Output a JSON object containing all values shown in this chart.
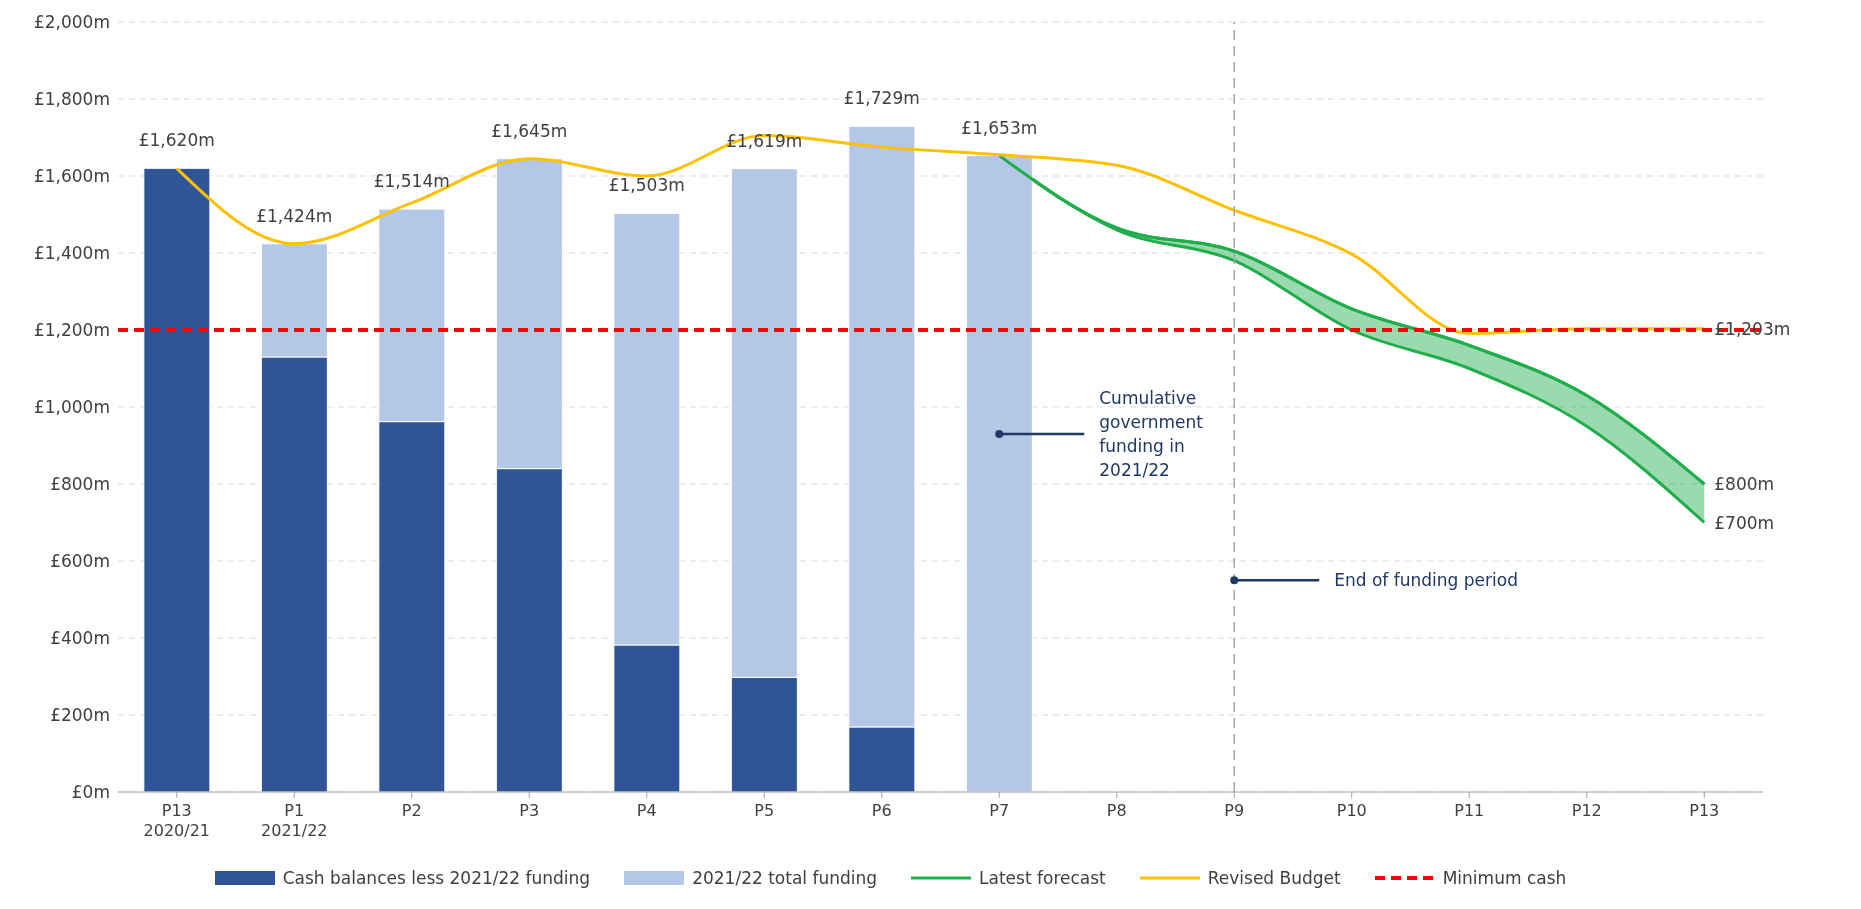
{
  "chart_data": {
    "type": "bar",
    "stacked": true,
    "categories": [
      "P13\n2020/21",
      "P1\n2021/22",
      "P2",
      "P3",
      "P4",
      "P5",
      "P6",
      "P7",
      "P8",
      "P9",
      "P10",
      "P11",
      "P12",
      "P13"
    ],
    "series": [
      {
        "name": "Cash balances less 2021/22 funding",
        "color": "#2f5597",
        "values": [
          1620,
          1130,
          962,
          840,
          382,
          298,
          169,
          0,
          null,
          null,
          null,
          null,
          null,
          null
        ]
      },
      {
        "name": "2021/22 total funding",
        "color": "#b4c7e7",
        "values": [
          0,
          294,
          552,
          805,
          1121,
          1321,
          1560,
          1653,
          null,
          null,
          null,
          null,
          null,
          null
        ]
      },
      {
        "name": "Latest forecast",
        "type": "line",
        "color": "#1fae4b",
        "values": [
          null,
          null,
          null,
          null,
          null,
          null,
          null,
          1653,
          1465,
          1405,
          1255,
          1160,
          1030,
          800
        ],
        "lower": [
          null,
          null,
          null,
          null,
          null,
          null,
          null,
          1653,
          1460,
          1380,
          1200,
          1100,
          950,
          700
        ],
        "upper": [
          null,
          null,
          null,
          null,
          null,
          null,
          null,
          1653,
          1465,
          1405,
          1255,
          1160,
          1030,
          800
        ]
      },
      {
        "name": "Revised Budget",
        "type": "line",
        "color": "#ffc000",
        "values": [
          1620,
          1424,
          1530,
          1645,
          1600,
          1705,
          1675,
          1655,
          1628,
          1511,
          1397,
          1191,
          1203,
          1203
        ]
      }
    ],
    "totals": [
      "£1,620m",
      "£1,424m",
      "£1,514m",
      "£1,645m",
      "£1,503m",
      "£1,619m",
      "£1,729m",
      "£1,653m",
      null,
      null,
      null,
      null,
      null,
      null
    ],
    "ref_lines": [
      {
        "axis": "y",
        "value": 1200,
        "label": "Minimum cash",
        "color": "#ff0000",
        "line_style": "dashed"
      },
      {
        "axis": "x",
        "value": "P9",
        "color": "#a6a6a6",
        "line_style": "dashed"
      }
    ],
    "annotations": [
      {
        "text": "Cumulative government funding in 2021/22",
        "x": "P7",
        "y": 930
      },
      {
        "text": "End of funding period",
        "x": "P9",
        "y": 550
      },
      {
        "text": "£1,203m",
        "x": "P13",
        "y": 1203
      },
      {
        "text": "£800m",
        "x": "P13",
        "y": 800
      },
      {
        "text": "£700m",
        "x": "P13",
        "y": 700
      }
    ],
    "ylim": [
      0,
      2000
    ],
    "yticks": [
      {
        "value": 0,
        "label": "£0m"
      },
      {
        "value": 200,
        "label": "£200m"
      },
      {
        "value": 400,
        "label": "£400m"
      },
      {
        "value": 600,
        "label": "£600m"
      },
      {
        "value": 800,
        "label": "£800m"
      },
      {
        "value": 1000,
        "label": "£1,000m"
      },
      {
        "value": 1200,
        "label": "£1,200m"
      },
      {
        "value": 1400,
        "label": "£1,400m"
      },
      {
        "value": 1600,
        "label": "£1,600m"
      },
      {
        "value": 1800,
        "label": "£1,800m"
      },
      {
        "value": 2000,
        "label": "£2,000m"
      }
    ],
    "grid": "y",
    "legend": "bottom"
  }
}
